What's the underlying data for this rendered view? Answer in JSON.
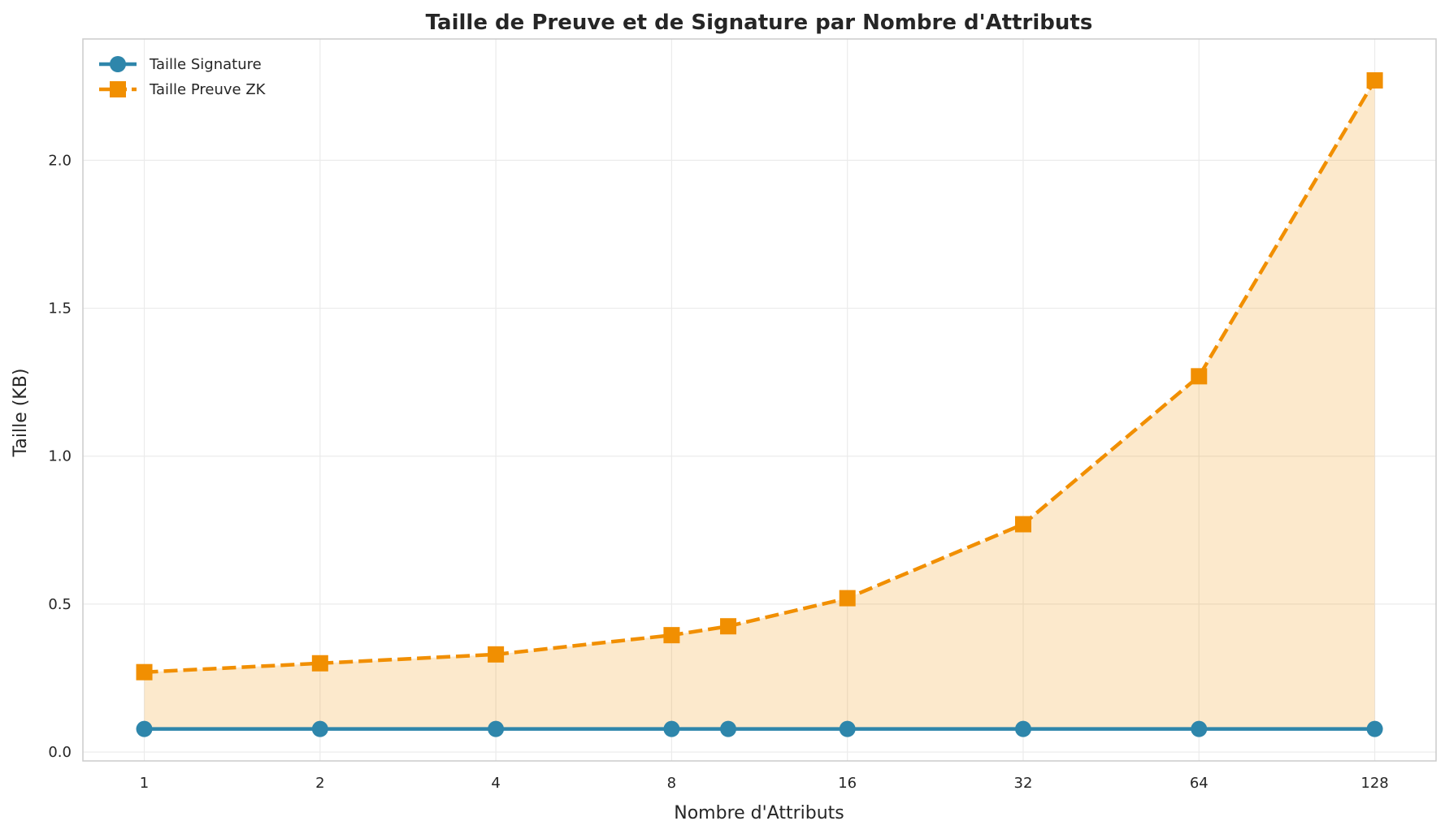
{
  "chart_data": {
    "type": "line",
    "title": "Taille de Preuve et de Signature par Nombre d'Attributs",
    "xlabel": "Nombre d'Attributs",
    "ylabel": "Taille (KB)",
    "x_scale": "log2",
    "x_ticks": [
      1,
      2,
      4,
      8,
      16,
      32,
      64,
      128
    ],
    "x_tick_labels": [
      "1",
      "2",
      "4",
      "8",
      "16",
      "32",
      "64",
      "128"
    ],
    "y_ticks": [
      0.0,
      0.5,
      1.0,
      1.5,
      2.0
    ],
    "y_tick_labels": [
      "0.0",
      "0.5",
      "1.0",
      "1.5",
      "2.0"
    ],
    "xlim": [
      0.785,
      163
    ],
    "ylim": [
      -0.03,
      2.41
    ],
    "grid": true,
    "legend_position": "top-left",
    "x": [
      1,
      2,
      4,
      8,
      10,
      16,
      32,
      64,
      128
    ],
    "series": [
      {
        "name": "Taille Signature",
        "values": [
          0.078,
          0.078,
          0.078,
          0.078,
          0.078,
          0.078,
          0.078,
          0.078,
          0.078
        ],
        "color": "#2e86ab",
        "marker": "circle",
        "line_style": "solid"
      },
      {
        "name": "Taille Preuve ZK",
        "values": [
          0.27,
          0.3,
          0.33,
          0.395,
          0.425,
          0.52,
          0.77,
          1.27,
          2.27
        ],
        "color": "#f18f01",
        "marker": "square",
        "line_style": "dashed",
        "fill_to": "Taille Signature"
      }
    ]
  }
}
